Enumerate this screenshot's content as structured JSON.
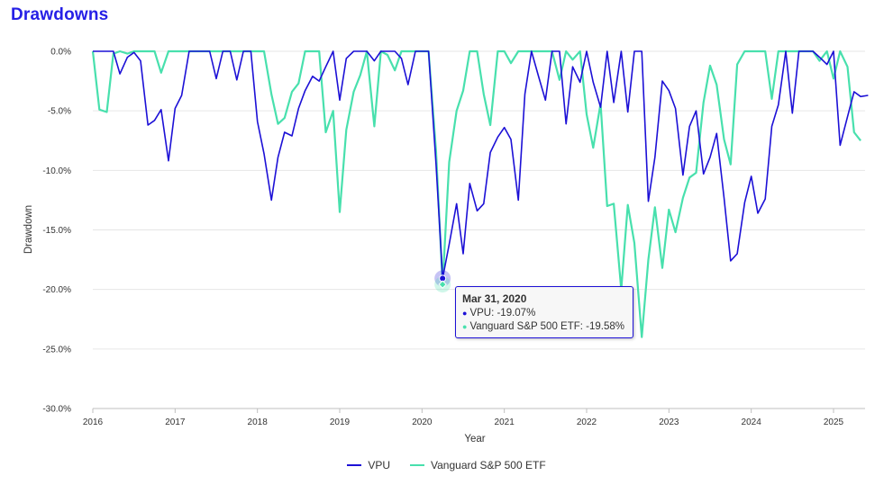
{
  "title": "Drawdowns",
  "colors": {
    "title": "#2620e6",
    "vpu": "#1c10d6",
    "voo": "#48e0ad",
    "grid": "#e6e6e6",
    "tooltip_border": "#1c10d6"
  },
  "legend": [
    {
      "name": "VPU",
      "color": "#1c10d6"
    },
    {
      "name": "Vanguard S&P 500 ETF",
      "color": "#48e0ad"
    }
  ],
  "tooltip": {
    "date": "Mar 31, 2020",
    "lines": [
      {
        "label": "VPU: -19.07%",
        "color": "#1c10d6"
      },
      {
        "label": "Vanguard S&P 500 ETF: -19.58%",
        "color": "#48e0ad"
      }
    ]
  },
  "chart_data": {
    "type": "line",
    "title": "Drawdowns",
    "xlabel": "Year",
    "ylabel": "Drawdown",
    "xlim": [
      2016.0,
      2025.42
    ],
    "ylim": [
      -30,
      0
    ],
    "y_ticks": [
      "0.0%",
      "-5.0%",
      "-10.0%",
      "-15.0%",
      "-20.0%",
      "-25.0%",
      "-30.0%"
    ],
    "x_ticks": [
      "2016",
      "2017",
      "2018",
      "2019",
      "2020",
      "2021",
      "2022",
      "2023",
      "2024",
      "2025"
    ],
    "legend_position": "bottom",
    "grid": true,
    "series": [
      {
        "name": "VPU",
        "points": [
          [
            2016.0,
            0
          ],
          [
            2016.08,
            0
          ],
          [
            2016.17,
            0
          ],
          [
            2016.25,
            0
          ],
          [
            2016.33,
            -1.9
          ],
          [
            2016.42,
            -0.5
          ],
          [
            2016.5,
            -0.1
          ],
          [
            2016.58,
            -0.8
          ],
          [
            2016.67,
            -6.2
          ],
          [
            2016.75,
            -5.8
          ],
          [
            2016.83,
            -4.9
          ],
          [
            2016.92,
            -9.2
          ],
          [
            2017.0,
            -4.8
          ],
          [
            2017.08,
            -3.7
          ],
          [
            2017.17,
            0
          ],
          [
            2017.25,
            0
          ],
          [
            2017.33,
            0
          ],
          [
            2017.42,
            0
          ],
          [
            2017.5,
            -2.3
          ],
          [
            2017.58,
            0
          ],
          [
            2017.67,
            0
          ],
          [
            2017.75,
            -2.4
          ],
          [
            2017.83,
            0
          ],
          [
            2017.92,
            0
          ],
          [
            2018.0,
            -5.9
          ],
          [
            2018.08,
            -8.6
          ],
          [
            2018.17,
            -12.5
          ],
          [
            2018.25,
            -8.9
          ],
          [
            2018.33,
            -6.8
          ],
          [
            2018.42,
            -7.1
          ],
          [
            2018.5,
            -4.8
          ],
          [
            2018.58,
            -3.3
          ],
          [
            2018.67,
            -2.1
          ],
          [
            2018.75,
            -2.5
          ],
          [
            2018.83,
            -1.3
          ],
          [
            2018.92,
            0
          ],
          [
            2019.0,
            -4.1
          ],
          [
            2019.08,
            -0.6
          ],
          [
            2019.17,
            0
          ],
          [
            2019.25,
            0
          ],
          [
            2019.33,
            0
          ],
          [
            2019.42,
            -0.8
          ],
          [
            2019.5,
            0
          ],
          [
            2019.58,
            0
          ],
          [
            2019.67,
            0
          ],
          [
            2019.75,
            -0.6
          ],
          [
            2019.83,
            -2.8
          ],
          [
            2019.92,
            0
          ],
          [
            2020.0,
            0
          ],
          [
            2020.08,
            0
          ],
          [
            2020.17,
            -9.5
          ],
          [
            2020.25,
            -19.07
          ],
          [
            2020.33,
            -16.2
          ],
          [
            2020.42,
            -12.8
          ],
          [
            2020.5,
            -17.0
          ],
          [
            2020.58,
            -11.1
          ],
          [
            2020.67,
            -13.4
          ],
          [
            2020.75,
            -12.8
          ],
          [
            2020.83,
            -8.5
          ],
          [
            2020.92,
            -7.2
          ],
          [
            2021.0,
            -6.4
          ],
          [
            2021.08,
            -7.4
          ],
          [
            2021.17,
            -12.5
          ],
          [
            2021.25,
            -3.6
          ],
          [
            2021.33,
            0
          ],
          [
            2021.42,
            -2.2
          ],
          [
            2021.5,
            -4.1
          ],
          [
            2021.58,
            0
          ],
          [
            2021.67,
            0
          ],
          [
            2021.75,
            -6.1
          ],
          [
            2021.83,
            -1.3
          ],
          [
            2021.92,
            -2.6
          ],
          [
            2022.0,
            0
          ],
          [
            2022.08,
            -2.6
          ],
          [
            2022.17,
            -4.7
          ],
          [
            2022.25,
            0
          ],
          [
            2022.33,
            -4.3
          ],
          [
            2022.42,
            0
          ],
          [
            2022.5,
            -5.1
          ],
          [
            2022.58,
            0
          ],
          [
            2022.67,
            0
          ],
          [
            2022.75,
            -12.6
          ],
          [
            2022.83,
            -8.9
          ],
          [
            2022.92,
            -2.5
          ],
          [
            2023.0,
            -3.3
          ],
          [
            2023.08,
            -4.8
          ],
          [
            2023.17,
            -10.4
          ],
          [
            2023.25,
            -6.3
          ],
          [
            2023.33,
            -5.0
          ],
          [
            2023.42,
            -10.3
          ],
          [
            2023.5,
            -8.9
          ],
          [
            2023.58,
            -6.9
          ],
          [
            2023.67,
            -12.3
          ],
          [
            2023.75,
            -17.6
          ],
          [
            2023.83,
            -17.0
          ],
          [
            2023.92,
            -12.7
          ],
          [
            2024.0,
            -10.5
          ],
          [
            2024.08,
            -13.6
          ],
          [
            2024.17,
            -12.4
          ],
          [
            2024.25,
            -6.3
          ],
          [
            2024.33,
            -4.5
          ],
          [
            2024.42,
            0
          ],
          [
            2024.5,
            -5.2
          ],
          [
            2024.58,
            0
          ],
          [
            2024.67,
            0
          ],
          [
            2024.75,
            0
          ],
          [
            2024.83,
            -0.5
          ],
          [
            2024.92,
            -1.1
          ],
          [
            2025.0,
            0
          ],
          [
            2025.08,
            -7.9
          ],
          [
            2025.17,
            -5.5
          ],
          [
            2025.25,
            -3.4
          ],
          [
            2025.33,
            -3.8
          ],
          [
            2025.42,
            -3.7
          ]
        ]
      },
      {
        "name": "Vanguard S&P 500 ETF",
        "points": [
          [
            2016.0,
            0
          ],
          [
            2016.08,
            -4.9
          ],
          [
            2016.17,
            -5.1
          ],
          [
            2016.25,
            -0.2
          ],
          [
            2016.33,
            0
          ],
          [
            2016.42,
            -0.2
          ],
          [
            2016.5,
            0
          ],
          [
            2016.58,
            0
          ],
          [
            2016.67,
            0
          ],
          [
            2016.75,
            0
          ],
          [
            2016.83,
            -1.8
          ],
          [
            2016.92,
            0
          ],
          [
            2017.0,
            0
          ],
          [
            2017.08,
            0
          ],
          [
            2017.17,
            0
          ],
          [
            2017.25,
            0
          ],
          [
            2017.33,
            0
          ],
          [
            2017.42,
            0
          ],
          [
            2017.5,
            0
          ],
          [
            2017.58,
            0
          ],
          [
            2017.67,
            0
          ],
          [
            2017.75,
            0
          ],
          [
            2017.83,
            0
          ],
          [
            2017.92,
            0
          ],
          [
            2018.0,
            0
          ],
          [
            2018.08,
            0
          ],
          [
            2018.17,
            -3.6
          ],
          [
            2018.25,
            -6.1
          ],
          [
            2018.33,
            -5.6
          ],
          [
            2018.42,
            -3.4
          ],
          [
            2018.5,
            -2.7
          ],
          [
            2018.58,
            0
          ],
          [
            2018.67,
            0
          ],
          [
            2018.75,
            0
          ],
          [
            2018.83,
            -6.8
          ],
          [
            2018.92,
            -5.0
          ],
          [
            2019.0,
            -13.5
          ],
          [
            2019.08,
            -6.6
          ],
          [
            2019.17,
            -3.4
          ],
          [
            2019.25,
            -2.0
          ],
          [
            2019.33,
            0
          ],
          [
            2019.42,
            -6.3
          ],
          [
            2019.5,
            0
          ],
          [
            2019.58,
            -0.3
          ],
          [
            2019.67,
            -1.6
          ],
          [
            2019.75,
            0
          ],
          [
            2019.83,
            0
          ],
          [
            2019.92,
            0
          ],
          [
            2020.0,
            0
          ],
          [
            2020.08,
            0
          ],
          [
            2020.17,
            -8.4
          ],
          [
            2020.25,
            -19.58
          ],
          [
            2020.33,
            -9.3
          ],
          [
            2020.42,
            -5.0
          ],
          [
            2020.5,
            -3.3
          ],
          [
            2020.58,
            0
          ],
          [
            2020.67,
            0
          ],
          [
            2020.75,
            -3.6
          ],
          [
            2020.83,
            -6.2
          ],
          [
            2020.92,
            0
          ],
          [
            2021.0,
            0
          ],
          [
            2021.08,
            -1.0
          ],
          [
            2021.17,
            0
          ],
          [
            2021.25,
            0
          ],
          [
            2021.33,
            0
          ],
          [
            2021.42,
            0
          ],
          [
            2021.5,
            0
          ],
          [
            2021.58,
            0
          ],
          [
            2021.67,
            -2.4
          ],
          [
            2021.75,
            0
          ],
          [
            2021.83,
            -0.7
          ],
          [
            2021.92,
            0
          ],
          [
            2022.0,
            -5.3
          ],
          [
            2022.08,
            -8.1
          ],
          [
            2022.17,
            -4.4
          ],
          [
            2022.25,
            -13.0
          ],
          [
            2022.33,
            -12.8
          ],
          [
            2022.42,
            -20.0
          ],
          [
            2022.5,
            -12.9
          ],
          [
            2022.58,
            -16.1
          ],
          [
            2022.67,
            -24.0
          ],
          [
            2022.75,
            -17.5
          ],
          [
            2022.83,
            -13.1
          ],
          [
            2022.92,
            -18.2
          ],
          [
            2023.0,
            -13.3
          ],
          [
            2023.08,
            -15.2
          ],
          [
            2023.17,
            -12.3
          ],
          [
            2023.25,
            -10.6
          ],
          [
            2023.33,
            -10.2
          ],
          [
            2023.42,
            -4.3
          ],
          [
            2023.5,
            -1.2
          ],
          [
            2023.58,
            -2.8
          ],
          [
            2023.67,
            -7.4
          ],
          [
            2023.75,
            -9.5
          ],
          [
            2023.83,
            -1.1
          ],
          [
            2023.92,
            0
          ],
          [
            2024.0,
            0
          ],
          [
            2024.08,
            0
          ],
          [
            2024.17,
            0
          ],
          [
            2024.25,
            -4.0
          ],
          [
            2024.33,
            0
          ],
          [
            2024.42,
            0
          ],
          [
            2024.5,
            0
          ],
          [
            2024.58,
            0
          ],
          [
            2024.67,
            0
          ],
          [
            2024.75,
            0
          ],
          [
            2024.83,
            -0.8
          ],
          [
            2024.92,
            0
          ],
          [
            2025.0,
            -2.3
          ],
          [
            2025.08,
            0
          ],
          [
            2025.17,
            -1.3
          ],
          [
            2025.25,
            -6.8
          ],
          [
            2025.33,
            -7.5
          ]
        ]
      }
    ],
    "highlight": {
      "x": 2020.25,
      "label": "Mar 31, 2020"
    }
  }
}
